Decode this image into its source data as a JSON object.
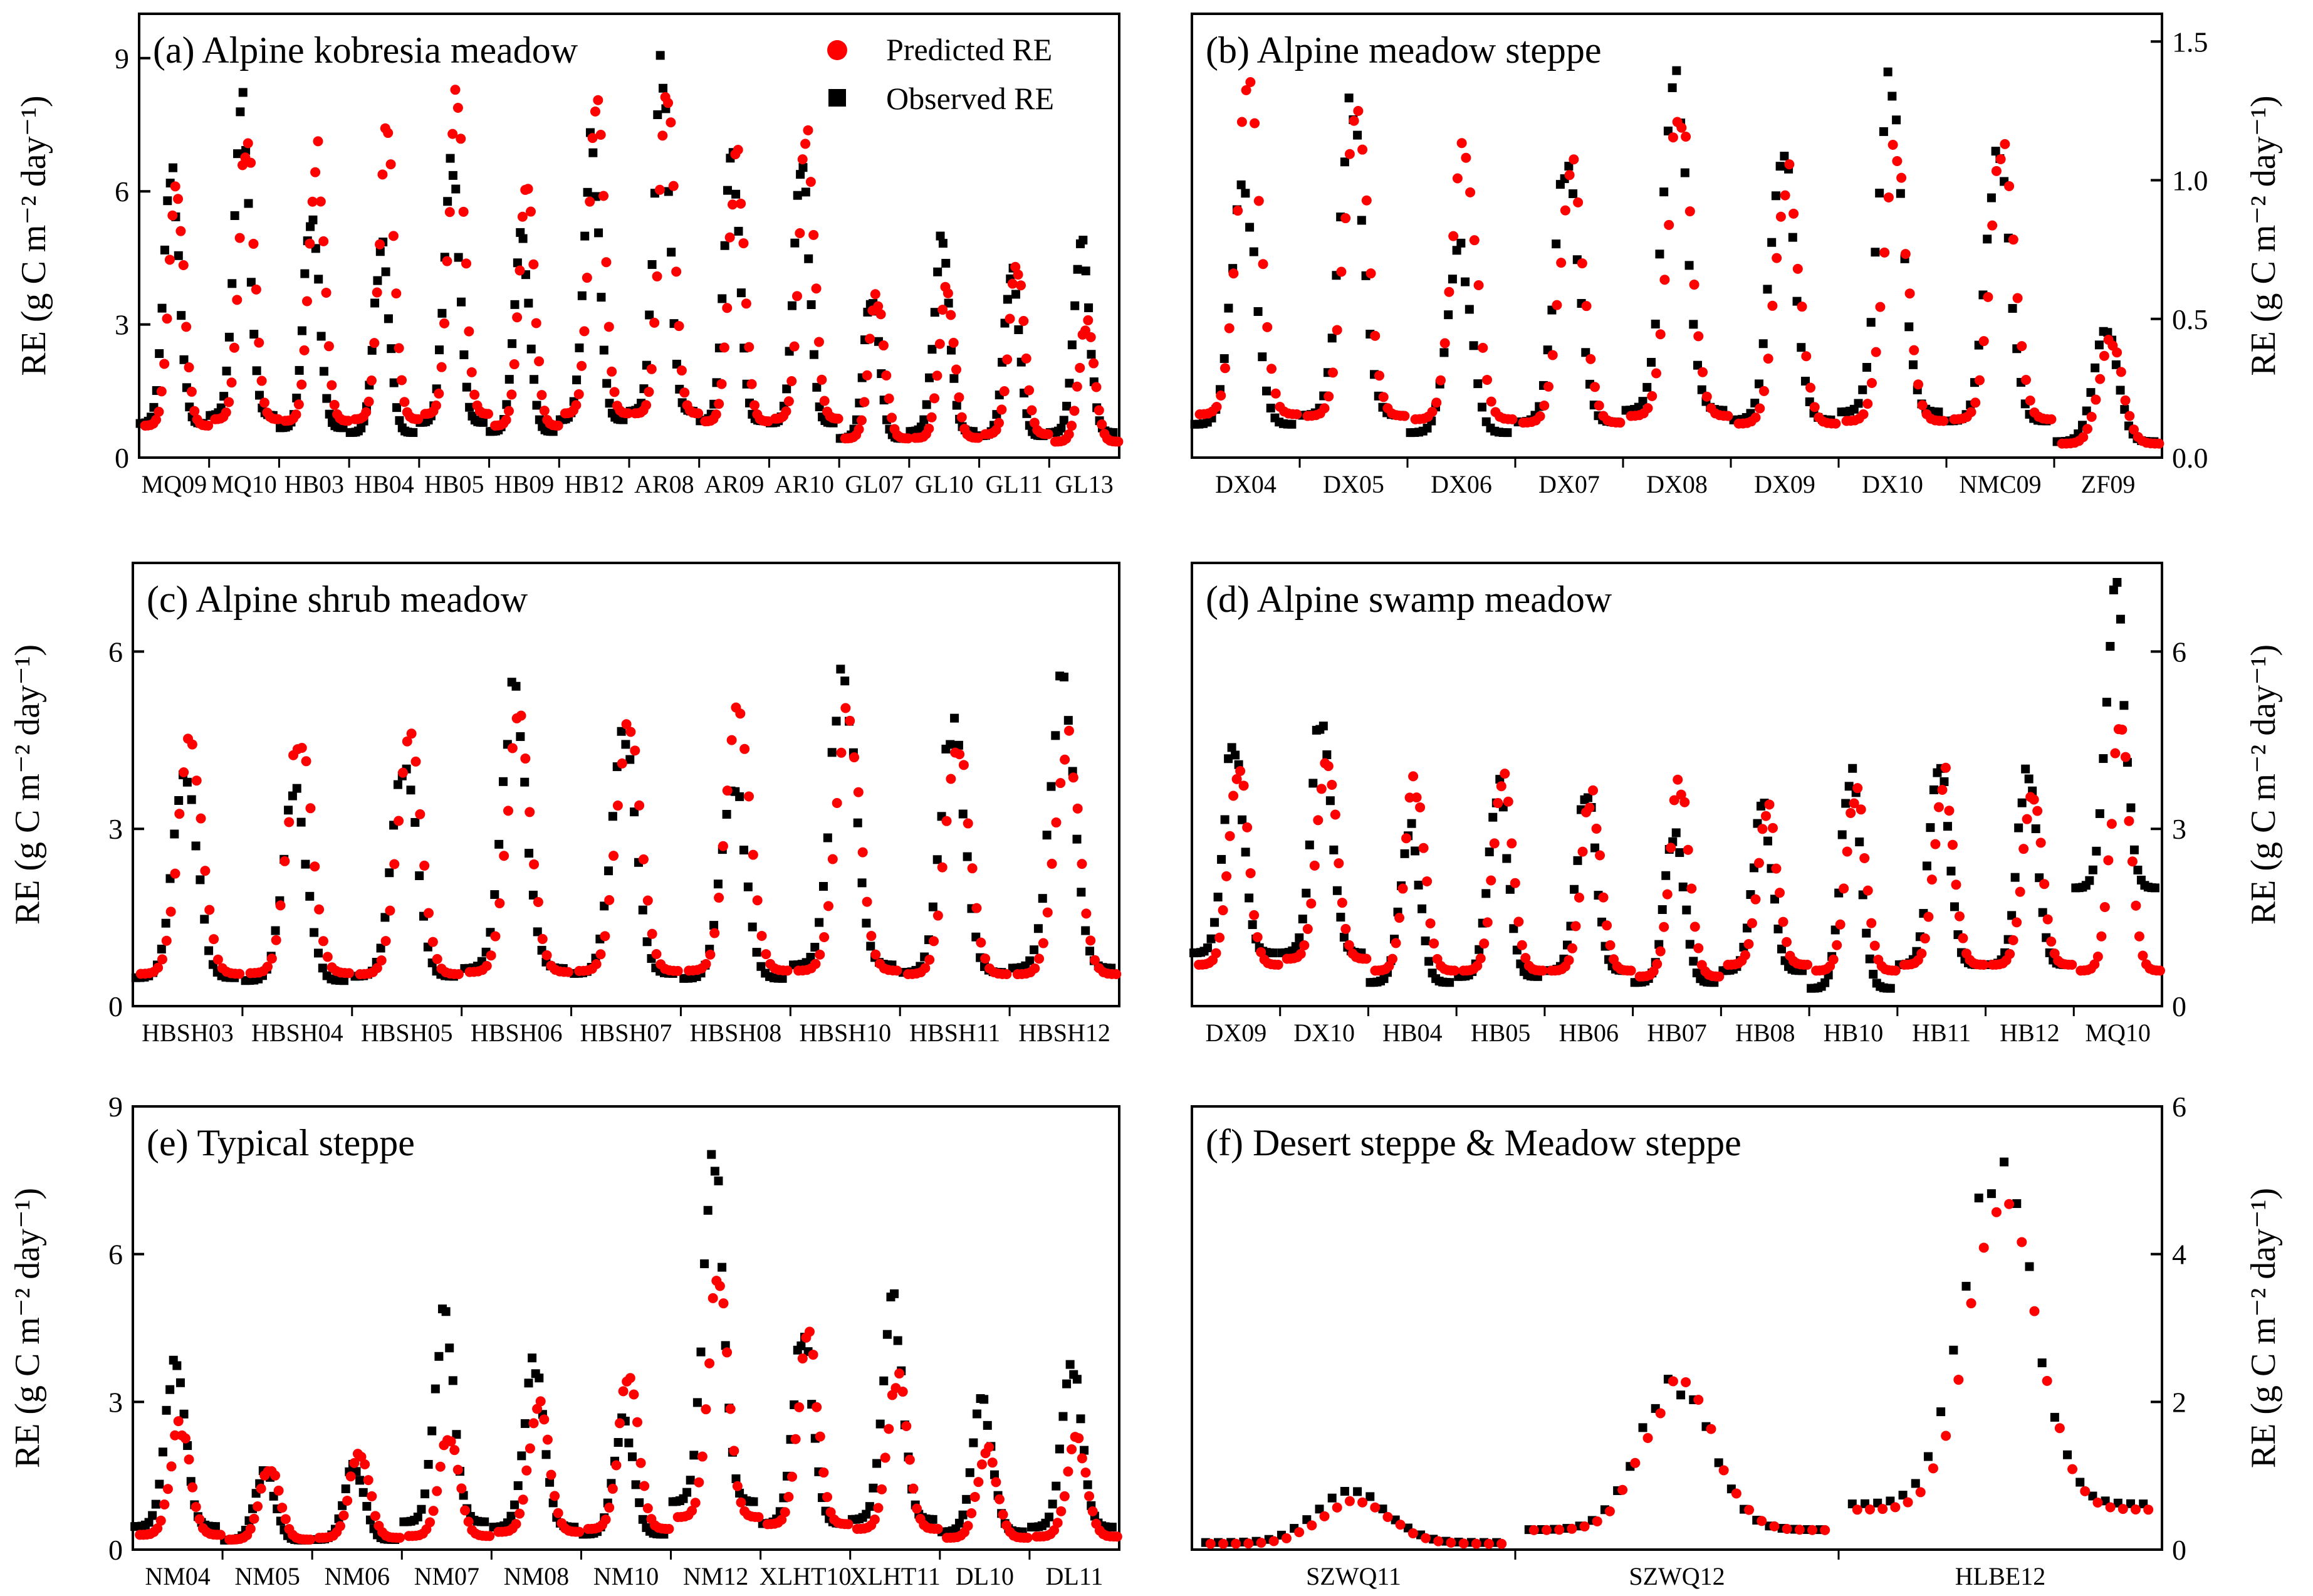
{
  "colors": {
    "predicted": "#ff0000",
    "observed": "#000000",
    "axes": "#000000"
  },
  "legend": {
    "predicted": "Predicted RE",
    "observed": "Observed RE"
  },
  "chart_data": [
    {
      "id": "a",
      "type": "scatter",
      "title": "(a) Alpine kobresia meadow",
      "ylabel": "RE (g C m⁻² day⁻¹)",
      "yaxis_side": "left",
      "ylim": [
        0,
        10
      ],
      "yticks": [
        "0",
        "3",
        "6",
        "9"
      ],
      "categories": [
        "MQ09",
        "MQ10",
        "HB03",
        "HB04",
        "HB05",
        "HB09",
        "HB12",
        "AR08",
        "AR09",
        "AR10",
        "GL07",
        "GL10",
        "GL11",
        "GL13"
      ],
      "series": [
        {
          "name": "Predicted RE",
          "peaks": [
            6.0,
            7.2,
            6.9,
            7.2,
            8.2,
            6.0,
            8.3,
            8.3,
            6.8,
            7.3,
            3.6,
            3.7,
            4.4,
            3.0
          ]
        },
        {
          "name": "Observed RE",
          "peaks": [
            6.4,
            7.9,
            5.6,
            4.7,
            6.6,
            4.9,
            7.1,
            8.7,
            6.9,
            6.5,
            3.6,
            4.9,
            4.1,
            4.7
          ]
        }
      ]
    },
    {
      "id": "b",
      "type": "scatter",
      "title": "(b) Alpine meadow steppe",
      "ylabel": "RE (g C m⁻² day⁻¹)",
      "yaxis_side": "right",
      "ylim": [
        0,
        1.6
      ],
      "yticks": [
        "0.0",
        "0.5",
        "1.0",
        "1.5"
      ],
      "categories": [
        "DX04",
        "DX05",
        "DX06",
        "DX07",
        "DX08",
        "DX09",
        "DX10",
        "NMC09",
        "ZF09"
      ],
      "series": [
        {
          "name": "Predicted RE",
          "peaks": [
            1.3,
            1.25,
            1.15,
            1.05,
            1.25,
            1.02,
            1.1,
            1.15,
            0.42
          ]
        },
        {
          "name": "Observed RE",
          "peaks": [
            1.0,
            1.27,
            0.75,
            1.07,
            1.42,
            1.13,
            1.37,
            1.1,
            0.48
          ]
        }
      ]
    },
    {
      "id": "c",
      "type": "scatter",
      "title": "(c) Alpine shrub meadow",
      "ylabel": "RE (g C m⁻² day⁻¹)",
      "yaxis_side": "left",
      "ylim": [
        0,
        7.5
      ],
      "yticks": [
        "0",
        "3",
        "6"
      ],
      "categories": [
        "HBSH03",
        "HBSH04",
        "HBSH05",
        "HBSH06",
        "HBSH07",
        "HBSH08",
        "HBSH10",
        "HBSH11",
        "HBSH12"
      ],
      "series": [
        {
          "name": "Predicted RE",
          "peaks": [
            4.55,
            4.65,
            4.5,
            4.8,
            4.95,
            5.0,
            5.0,
            4.5,
            4.5
          ]
        },
        {
          "name": "Observed RE",
          "peaks": [
            4.0,
            3.6,
            4.2,
            5.3,
            4.6,
            3.9,
            5.8,
            4.75,
            5.35
          ]
        }
      ]
    },
    {
      "id": "d",
      "type": "scatter",
      "title": "(d) Alpine swamp meadow",
      "ylabel": "RE (g C m⁻² day⁻¹)",
      "yaxis_side": "right",
      "ylim": [
        0,
        7.5
      ],
      "yticks": [
        "0",
        "3",
        "6"
      ],
      "categories": [
        "DX09",
        "DX10",
        "HB04",
        "HB05",
        "HB06",
        "HB07",
        "HB08",
        "HB10",
        "HB11",
        "HB12",
        "MQ10"
      ],
      "series": [
        {
          "name": "Predicted RE",
          "peaks": [
            4.0,
            4.3,
            3.8,
            3.9,
            3.5,
            3.8,
            3.3,
            3.6,
            3.9,
            3.6,
            4.6
          ],
          "off_season": [
            0.7,
            0.8,
            0.6,
            0.6,
            0.6,
            0.5,
            0.7,
            0.6,
            0.7,
            0.7,
            0.6
          ]
        },
        {
          "name": "Observed RE",
          "peaks": [
            4.5,
            5.0,
            3.0,
            3.7,
            3.6,
            3.0,
            3.3,
            4.0,
            4.2,
            4.0,
            6.9
          ],
          "off_season": [
            0.9,
            0.9,
            0.4,
            0.5,
            0.6,
            0.4,
            0.6,
            0.3,
            0.7,
            0.7,
            2.0
          ]
        }
      ]
    },
    {
      "id": "e",
      "type": "scatter",
      "title": "(e) Typical steppe",
      "ylabel": "RE (g C m⁻² day⁻¹)",
      "yaxis_side": "left",
      "ylim": [
        0,
        9
      ],
      "yticks": [
        "0",
        "3",
        "6",
        "9"
      ],
      "categories": [
        "NM04",
        "NM05",
        "NM06",
        "NM07",
        "NM08",
        "NM10",
        "NM12",
        "XLHT10",
        "XLHT11",
        "DL10",
        "DL11"
      ],
      "series": [
        {
          "name": "Predicted RE",
          "peaks": [
            2.5,
            1.7,
            2.0,
            2.3,
            3.0,
            3.5,
            5.5,
            4.3,
            3.5,
            2.0,
            2.2
          ]
        },
        {
          "name": "Observed RE",
          "peaks": [
            3.9,
            1.6,
            1.7,
            4.7,
            3.8,
            2.6,
            8.1,
            4.4,
            5.1,
            3.0,
            3.8
          ]
        }
      ]
    },
    {
      "id": "f",
      "type": "scatter",
      "title": "(f) Desert steppe & Meadow steppe",
      "ylabel": "RE (g C m⁻² day⁻¹)",
      "yaxis_side": "right",
      "ylim": [
        0,
        6
      ],
      "yticks": [
        "0",
        "2",
        "4",
        "6"
      ],
      "categories": [
        "SZWQ11",
        "SZWQ12",
        "HLBE12"
      ],
      "series": [
        {
          "name": "Predicted RE",
          "peaks": [
            0.65,
            2.2,
            4.5
          ]
        },
        {
          "name": "Observed RE",
          "peaks": [
            0.8,
            2.25,
            5.15
          ]
        }
      ]
    }
  ]
}
